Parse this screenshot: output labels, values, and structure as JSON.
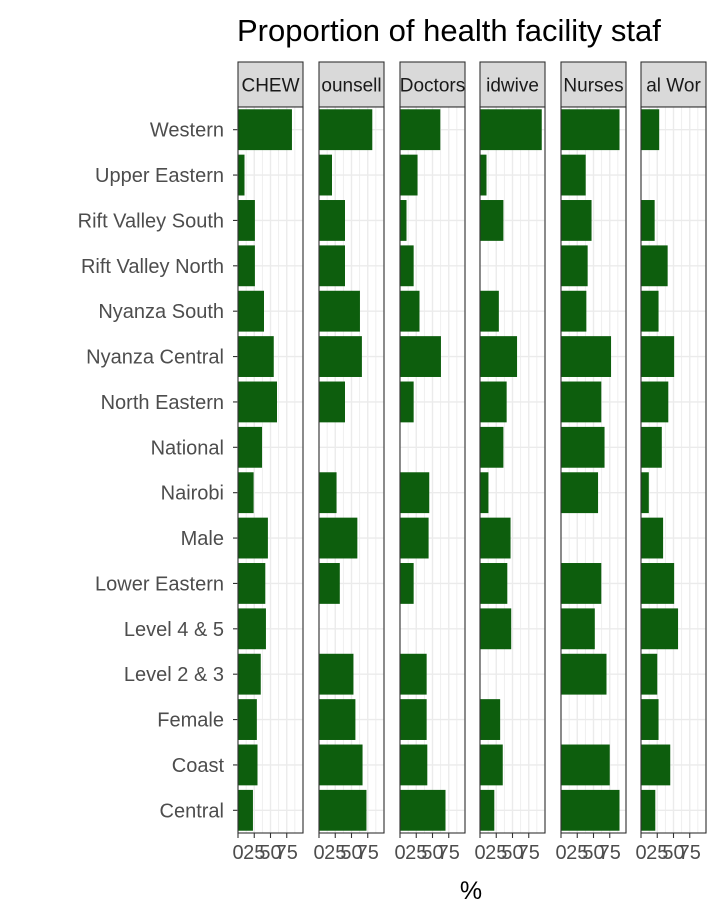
{
  "chart_data": {
    "type": "bar",
    "orientation": "horizontal",
    "title": "Proportion of health facility staf",
    "xlabel": "%",
    "ylabel": "",
    "xlim": [
      0,
      100
    ],
    "x_ticks": [
      0,
      25,
      50,
      75
    ],
    "x_tick_labels": [
      "0",
      "25",
      "50",
      "75"
    ],
    "grid": true,
    "bar_color": "#0d5e0d",
    "strip_fill": "#d9d9d9",
    "categories": [
      "Western",
      "Upper Eastern",
      "Rift Valley South",
      "Rift Valley North",
      "Nyanza South",
      "Nyanza Central",
      "North Eastern",
      "National",
      "Nairobi",
      "Male",
      "Lower Eastern",
      "Level 4 & 5",
      "Level 2 & 3",
      "Female",
      "Coast",
      "Central"
    ],
    "panels": [
      {
        "label": "CHEW",
        "values": [
          83,
          10,
          26,
          26,
          40,
          55,
          60,
          37,
          24,
          46,
          42,
          43,
          35,
          29,
          30,
          23
        ]
      },
      {
        "label": "ounsell",
        "values": [
          82,
          20,
          40,
          40,
          63,
          66,
          40,
          null,
          27,
          59,
          32,
          null,
          53,
          56,
          67,
          73
        ]
      },
      {
        "label": "Doctors",
        "values": [
          62,
          27,
          10,
          21,
          30,
          63,
          21,
          null,
          45,
          44,
          21,
          null,
          41,
          41,
          42,
          70
        ]
      },
      {
        "label": "idwive",
        "values": [
          95,
          10,
          36,
          null,
          29,
          57,
          41,
          36,
          13,
          47,
          42,
          48,
          null,
          31,
          35,
          22
        ]
      },
      {
        "label": "Nurses",
        "values": [
          90,
          38,
          47,
          41,
          39,
          77,
          62,
          67,
          57,
          null,
          62,
          52,
          70,
          null,
          75,
          90
        ]
      },
      {
        "label": "al Wor",
        "values": [
          28,
          null,
          21,
          41,
          27,
          51,
          42,
          32,
          12,
          34,
          51,
          57,
          25,
          27,
          45,
          22
        ]
      }
    ]
  }
}
